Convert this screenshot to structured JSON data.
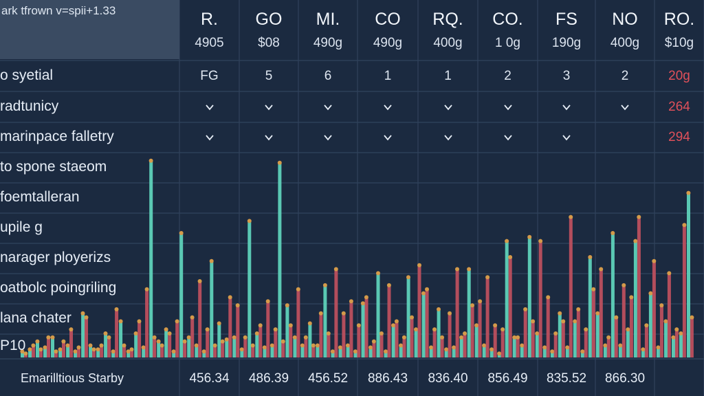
{
  "title": "ark tfrown v=spii+1.33",
  "colors": {
    "background": "#1b2a40",
    "header_left": "#3a4b62",
    "teal": "#5fd6bd",
    "red": "#c0505e",
    "dot": "#d49a4a",
    "warning_text": "#e0505a",
    "grid": "#31435c"
  },
  "columns": [
    {
      "code": "R.",
      "value": "4905"
    },
    {
      "code": "GO",
      "value": "$08"
    },
    {
      "code": "MI.",
      "value": "490g"
    },
    {
      "code": "CO",
      "value": "490g"
    },
    {
      "code": "RQ.",
      "value": "400g"
    },
    {
      "code": "CO.",
      "value": "1 0g"
    },
    {
      "code": "FS",
      "value": "190g"
    },
    {
      "code": "NO",
      "value": "400g"
    },
    {
      "code": "RO.",
      "value": "$10g"
    }
  ],
  "rows": [
    {
      "label": "o syetial",
      "cells": [
        "FG",
        "5",
        "6",
        "1",
        "1",
        "2",
        "3",
        "2",
        "20g"
      ]
    },
    {
      "label": "radtunicy",
      "cells": [
        "chevron-down-icon",
        "chevron-down-icon",
        "chevron-down-icon",
        "chevron-down-icon",
        "chevron-down-icon",
        "chevron-down-icon",
        "chevron-down-icon",
        "chevron-down-icon",
        "264"
      ]
    },
    {
      "label": "marinpace falletry",
      "cells": [
        "chevron-down-icon",
        "chevron-down-icon",
        "chevron-down-icon",
        "chevron-down-icon",
        "chevron-down-icon",
        "chevron-down-icon",
        "chevron-down-icon",
        "",
        "294"
      ]
    },
    {
      "label": "to spone staeom"
    },
    {
      "label": "foemtalleran"
    },
    {
      "label": "upile g"
    },
    {
      "label": "narager ployerizs"
    },
    {
      "label": "oatbolc poingriling"
    },
    {
      "label": "lana chater"
    },
    {
      "label": "P10"
    }
  ],
  "footer": {
    "label": "Emarilltious Starby",
    "values": [
      "456.34",
      "486.39",
      "456.52",
      "886.43",
      "836.40",
      "856.49",
      "835.52",
      "866.30"
    ]
  },
  "chart_data": {
    "type": "bar",
    "ylim": [
      0,
      100
    ],
    "series": [
      {
        "color": "#5fd6bd",
        "values": [
          3,
          4,
          8,
          5,
          10,
          4,
          6,
          3,
          22,
          6,
          4,
          12,
          3,
          18,
          3,
          12,
          5,
          98,
          8,
          14,
          3,
          62,
          10,
          6,
          3,
          48,
          17,
          9,
          10,
          4,
          68,
          12,
          5,
          6,
          97,
          26,
          10,
          6,
          17,
          6,
          36,
          3,
          5,
          6,
          3,
          27,
          5,
          42,
          3,
          16,
          6,
          40,
          14,
          32,
          5,
          24,
          4,
          5,
          10,
          44,
          16,
          6,
          4,
          2,
          58,
          10,
          6,
          60,
          12,
          5,
          3,
          22,
          5,
          18,
          3,
          50,
          22,
          6,
          62,
          6,
          14,
          58,
          4,
          32,
          5,
          18,
          10,
          12,
          82
        ]
      },
      {
        "color": "#c0505e",
        "values": [
          2,
          6,
          4,
          10,
          3,
          8,
          14,
          5,
          20,
          4,
          6,
          10,
          24,
          6,
          4,
          18,
          34,
          10,
          6,
          12,
          18,
          8,
          20,
          38,
          14,
          6,
          8,
          30,
          26,
          10,
          6,
          16,
          28,
          14,
          8,
          16,
          34,
          10,
          6,
          22,
          12,
          44,
          22,
          28,
          16,
          30,
          8,
          12,
          36,
          18,
          10,
          20,
          46,
          34,
          14,
          10,
          22,
          44,
          12,
          26,
          28,
          40,
          16,
          14,
          50,
          10,
          24,
          18,
          58,
          30,
          12,
          18,
          70,
          24,
          14,
          34,
          44,
          10,
          20,
          36,
          30,
          70,
          16,
          48,
          26,
          42,
          14,
          66,
          20
        ]
      }
    ]
  }
}
